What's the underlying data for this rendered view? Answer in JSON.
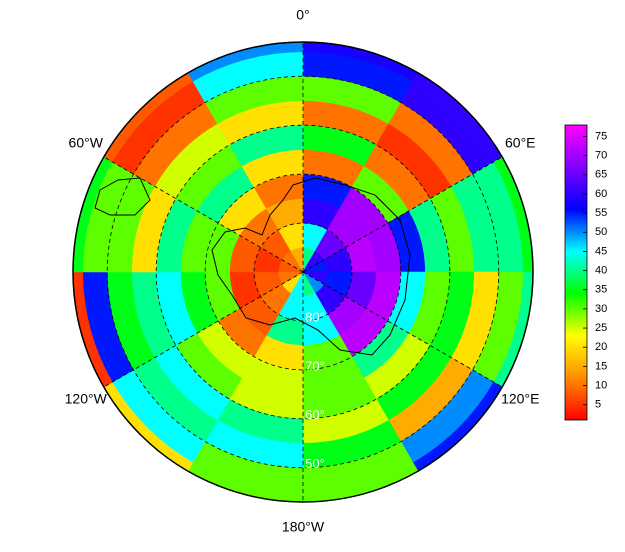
{
  "chart_data": {
    "type": "polar_heatmap",
    "lat_lim": [
      90,
      43
    ],
    "lat_bins": [
      90,
      85,
      80,
      75,
      70,
      65,
      60,
      55,
      50,
      45,
      43
    ],
    "lon_bins": [
      0,
      30,
      60,
      90,
      120,
      150,
      180,
      210,
      240,
      270,
      300,
      330,
      360
    ],
    "values": [
      [
        40,
        60,
        55,
        60,
        50,
        40,
        45,
        20,
        10,
        8,
        10,
        15
      ],
      [
        45,
        65,
        60,
        55,
        60,
        45,
        45,
        10,
        8,
        5,
        8,
        20
      ],
      [
        60,
        70,
        72,
        65,
        70,
        45,
        40,
        8,
        5,
        8,
        10,
        15
      ],
      [
        55,
        70,
        70,
        72,
        72,
        30,
        20,
        10,
        30,
        30,
        20,
        10
      ],
      [
        10,
        30,
        55,
        45,
        40,
        30,
        25,
        25,
        35,
        30,
        40,
        20
      ],
      [
        35,
        10,
        40,
        30,
        25,
        30,
        25,
        30,
        45,
        40,
        30,
        40
      ],
      [
        10,
        5,
        30,
        35,
        35,
        25,
        40,
        45,
        40,
        20,
        25,
        20
      ],
      [
        30,
        10,
        40,
        20,
        15,
        35,
        45,
        40,
        35,
        30,
        10,
        30
      ],
      [
        55,
        60,
        40,
        30,
        50,
        30,
        30,
        45,
        55,
        30,
        5,
        45
      ],
      [
        58,
        60,
        35,
        40,
        55,
        30,
        30,
        20,
        5,
        35,
        8,
        50
      ]
    ],
    "lon_ticks": [
      {
        "value": 0,
        "label": "0°"
      },
      {
        "value": 60,
        "label": "60°E"
      },
      {
        "value": 120,
        "label": "120°E"
      },
      {
        "value": 180,
        "label": "180°W"
      },
      {
        "value": -120,
        "label": "120°W"
      },
      {
        "value": -60,
        "label": "60°W"
      }
    ],
    "lat_ticks": [
      {
        "value": 80,
        "label": "80°"
      },
      {
        "value": 70,
        "label": "70°"
      },
      {
        "value": 60,
        "label": "60°"
      },
      {
        "value": 50,
        "label": "50°"
      }
    ],
    "clim": [
      1,
      78
    ],
    "colormap": [
      "#ff0000",
      "#ff8c00",
      "#ffff00",
      "#00ff00",
      "#00ffff",
      "#0000ff",
      "#8000ff",
      "#ff00ff"
    ],
    "cticks": [
      5,
      10,
      15,
      20,
      25,
      30,
      35,
      40,
      45,
      50,
      55,
      60,
      65,
      70,
      75
    ]
  }
}
